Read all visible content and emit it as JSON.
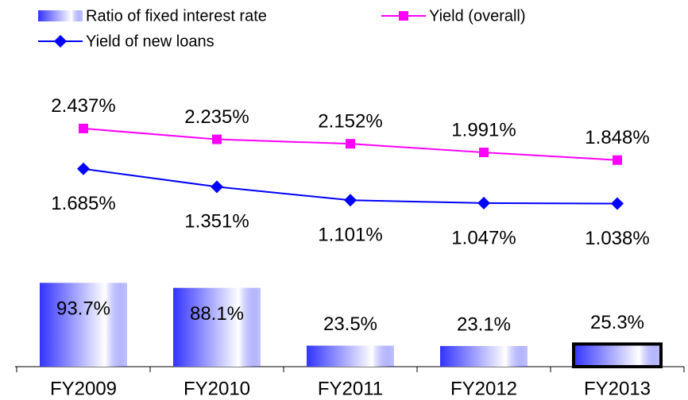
{
  "chart_data": {
    "type": "bar",
    "categories": [
      "FY2009",
      "FY2010",
      "FY2011",
      "FY2012",
      "FY2013"
    ],
    "series": [
      {
        "name": "Ratio of fixed interest rate",
        "type": "bar",
        "color": "#3333ff",
        "values": [
          93.7,
          88.1,
          23.5,
          23.1,
          25.3
        ],
        "value_labels": [
          "93.7%",
          "88.1%",
          "23.5%",
          "23.1%",
          "25.3%"
        ],
        "edgecolor": [
          null,
          null,
          null,
          null,
          "#000000"
        ]
      },
      {
        "name": "Yield (overall)",
        "type": "line",
        "axis": "y2",
        "color": "#ff00ff",
        "marker": "square",
        "label_position": "above",
        "values": [
          2.437,
          2.235,
          2.152,
          1.991,
          1.848
        ],
        "value_labels": [
          "2.437%",
          "2.235%",
          "2.152%",
          "1.991%",
          "1.848%"
        ]
      },
      {
        "name": "Yield of new loans",
        "type": "line",
        "axis": "y2",
        "color": "#0000ff",
        "marker": "diamond",
        "label_position": "below",
        "values": [
          1.685,
          1.351,
          1.101,
          1.047,
          1.038
        ],
        "value_labels": [
          "1.685%",
          "1.351%",
          "1.101%",
          "1.047%",
          "1.038%"
        ]
      }
    ],
    "ylim": [
      0,
      330
    ],
    "y2lim": [
      -2,
      3.5
    ],
    "legend": "top-left"
  }
}
